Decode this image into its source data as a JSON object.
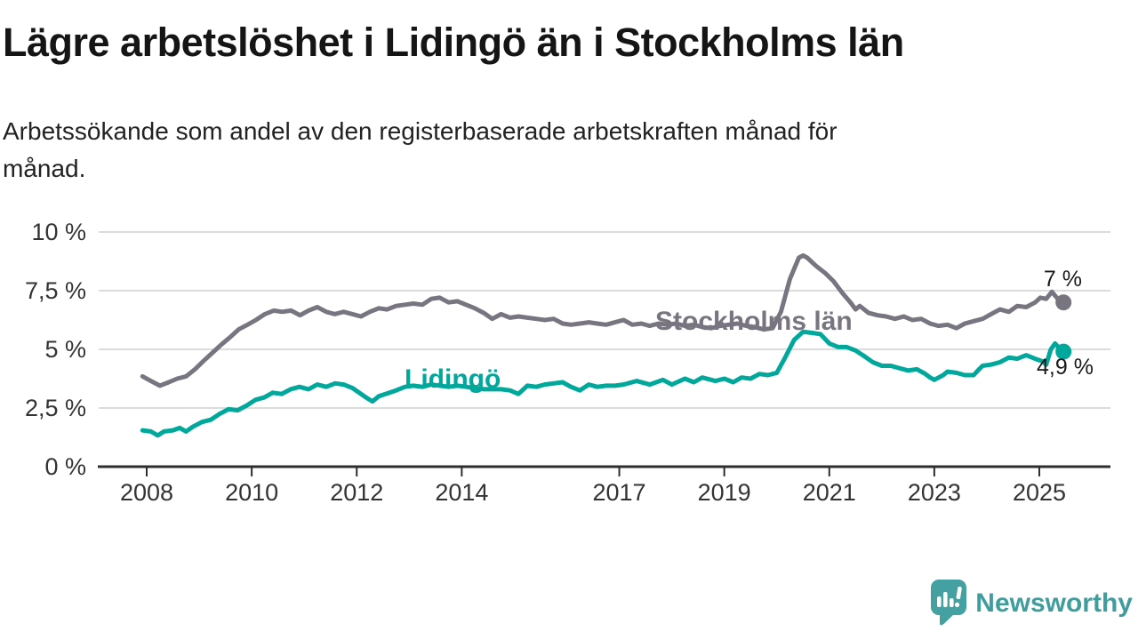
{
  "title": "Lägre arbetslöshet i Lidingö än i Stockholms län",
  "subtitle": "Arbetssökande som andel av den registerbaserade arbetskraften månad för\nmånad.",
  "branding": {
    "logo_text": "Newsworthy"
  },
  "colors": {
    "stockholm_line": "#787580",
    "lidingo_line": "#00a79b",
    "grid": "#dcdcdc",
    "axis": "#2e2e2e",
    "tick_text": "#333333",
    "end_label_text": "#1a1a1a",
    "logo_icon": "#45a1a1",
    "logo_text": "#3f9d9d"
  },
  "chart_data": {
    "type": "line",
    "x_unit": "decimal_year",
    "xlim": [
      2007.1,
      2026.35
    ],
    "ylim": [
      0,
      10
    ],
    "x_ticks": [
      2008,
      2010,
      2012,
      2014,
      2017,
      2019,
      2021,
      2023,
      2025
    ],
    "x_tick_labels": [
      "2008",
      "2010",
      "2012",
      "2014",
      "2017",
      "2019",
      "2021",
      "2023",
      "2025"
    ],
    "y_ticks": [
      0,
      2.5,
      5,
      7.5,
      10
    ],
    "y_tick_labels": [
      "0 %",
      "2,5 %",
      "5 %",
      "7,5 %",
      "10 %"
    ],
    "grid": "horizontal-only",
    "legend": "inline-series-labels",
    "series": [
      {
        "name": "Stockholms län",
        "color": "#787580",
        "end_label": "7 %",
        "latest_value": 7.0,
        "points": [
          [
            2007.92,
            3.85
          ],
          [
            2008.08,
            3.65
          ],
          [
            2008.25,
            3.45
          ],
          [
            2008.42,
            3.6
          ],
          [
            2008.58,
            3.75
          ],
          [
            2008.75,
            3.85
          ],
          [
            2008.92,
            4.15
          ],
          [
            2009.08,
            4.5
          ],
          [
            2009.25,
            4.85
          ],
          [
            2009.42,
            5.2
          ],
          [
            2009.58,
            5.5
          ],
          [
            2009.75,
            5.85
          ],
          [
            2009.92,
            6.05
          ],
          [
            2010.08,
            6.25
          ],
          [
            2010.25,
            6.5
          ],
          [
            2010.42,
            6.65
          ],
          [
            2010.58,
            6.6
          ],
          [
            2010.75,
            6.65
          ],
          [
            2010.92,
            6.45
          ],
          [
            2011.08,
            6.65
          ],
          [
            2011.25,
            6.8
          ],
          [
            2011.42,
            6.6
          ],
          [
            2011.58,
            6.5
          ],
          [
            2011.75,
            6.6
          ],
          [
            2011.92,
            6.5
          ],
          [
            2012.08,
            6.4
          ],
          [
            2012.25,
            6.6
          ],
          [
            2012.42,
            6.75
          ],
          [
            2012.58,
            6.7
          ],
          [
            2012.75,
            6.85
          ],
          [
            2012.92,
            6.9
          ],
          [
            2013.08,
            6.95
          ],
          [
            2013.25,
            6.9
          ],
          [
            2013.42,
            7.15
          ],
          [
            2013.58,
            7.2
          ],
          [
            2013.75,
            7.0
          ],
          [
            2013.92,
            7.05
          ],
          [
            2014.08,
            6.9
          ],
          [
            2014.25,
            6.75
          ],
          [
            2014.42,
            6.55
          ],
          [
            2014.58,
            6.3
          ],
          [
            2014.75,
            6.5
          ],
          [
            2014.92,
            6.35
          ],
          [
            2015.08,
            6.4
          ],
          [
            2015.25,
            6.35
          ],
          [
            2015.42,
            6.3
          ],
          [
            2015.58,
            6.25
          ],
          [
            2015.75,
            6.3
          ],
          [
            2015.92,
            6.1
          ],
          [
            2016.08,
            6.05
          ],
          [
            2016.25,
            6.1
          ],
          [
            2016.42,
            6.15
          ],
          [
            2016.58,
            6.1
          ],
          [
            2016.75,
            6.05
          ],
          [
            2016.92,
            6.15
          ],
          [
            2017.08,
            6.25
          ],
          [
            2017.25,
            6.05
          ],
          [
            2017.42,
            6.1
          ],
          [
            2017.58,
            6.0
          ],
          [
            2017.75,
            6.1
          ],
          [
            2017.92,
            6.05
          ],
          [
            2018.08,
            6.1
          ],
          [
            2018.25,
            6.0
          ],
          [
            2018.42,
            6.05
          ],
          [
            2018.58,
            5.95
          ],
          [
            2018.75,
            5.9
          ],
          [
            2018.92,
            6.0
          ],
          [
            2019.08,
            6.05
          ],
          [
            2019.25,
            6.1
          ],
          [
            2019.42,
            6.0
          ],
          [
            2019.58,
            5.95
          ],
          [
            2019.75,
            5.85
          ],
          [
            2019.92,
            5.9
          ],
          [
            2020.08,
            6.6
          ],
          [
            2020.25,
            8.0
          ],
          [
            2020.42,
            8.9
          ],
          [
            2020.5,
            9.0
          ],
          [
            2020.58,
            8.9
          ],
          [
            2020.75,
            8.55
          ],
          [
            2020.92,
            8.25
          ],
          [
            2021.08,
            7.9
          ],
          [
            2021.25,
            7.4
          ],
          [
            2021.42,
            6.95
          ],
          [
            2021.5,
            6.7
          ],
          [
            2021.58,
            6.85
          ],
          [
            2021.75,
            6.55
          ],
          [
            2021.92,
            6.45
          ],
          [
            2022.08,
            6.4
          ],
          [
            2022.25,
            6.3
          ],
          [
            2022.42,
            6.4
          ],
          [
            2022.58,
            6.25
          ],
          [
            2022.75,
            6.3
          ],
          [
            2022.92,
            6.1
          ],
          [
            2023.08,
            6.0
          ],
          [
            2023.25,
            6.05
          ],
          [
            2023.42,
            5.9
          ],
          [
            2023.58,
            6.1
          ],
          [
            2023.75,
            6.2
          ],
          [
            2023.92,
            6.3
          ],
          [
            2024.08,
            6.5
          ],
          [
            2024.25,
            6.7
          ],
          [
            2024.42,
            6.6
          ],
          [
            2024.58,
            6.85
          ],
          [
            2024.75,
            6.8
          ],
          [
            2024.92,
            7.0
          ],
          [
            2025.02,
            7.2
          ],
          [
            2025.13,
            7.15
          ],
          [
            2025.24,
            7.45
          ],
          [
            2025.35,
            7.15
          ],
          [
            2025.46,
            7.0
          ]
        ]
      },
      {
        "name": "Lidingö",
        "color": "#00a79b",
        "end_label": "4,9 %",
        "latest_value": 4.9,
        "points": [
          [
            2007.92,
            1.55
          ],
          [
            2008.08,
            1.5
          ],
          [
            2008.21,
            1.33
          ],
          [
            2008.33,
            1.5
          ],
          [
            2008.5,
            1.55
          ],
          [
            2008.63,
            1.65
          ],
          [
            2008.75,
            1.5
          ],
          [
            2008.88,
            1.7
          ],
          [
            2009.05,
            1.9
          ],
          [
            2009.22,
            2.0
          ],
          [
            2009.39,
            2.25
          ],
          [
            2009.56,
            2.45
          ],
          [
            2009.73,
            2.4
          ],
          [
            2009.9,
            2.6
          ],
          [
            2010.07,
            2.85
          ],
          [
            2010.24,
            2.95
          ],
          [
            2010.4,
            3.15
          ],
          [
            2010.57,
            3.1
          ],
          [
            2010.74,
            3.3
          ],
          [
            2010.91,
            3.4
          ],
          [
            2011.08,
            3.3
          ],
          [
            2011.25,
            3.5
          ],
          [
            2011.42,
            3.4
          ],
          [
            2011.59,
            3.55
          ],
          [
            2011.75,
            3.5
          ],
          [
            2011.92,
            3.35
          ],
          [
            2012.08,
            3.1
          ],
          [
            2012.21,
            2.9
          ],
          [
            2012.3,
            2.78
          ],
          [
            2012.42,
            3.0
          ],
          [
            2012.58,
            3.12
          ],
          [
            2012.75,
            3.25
          ],
          [
            2012.92,
            3.4
          ],
          [
            2013.08,
            3.45
          ],
          [
            2013.25,
            3.4
          ],
          [
            2013.42,
            3.5
          ],
          [
            2013.58,
            3.45
          ],
          [
            2013.75,
            3.4
          ],
          [
            2013.92,
            3.45
          ],
          [
            2014.08,
            3.4
          ],
          [
            2014.25,
            3.35
          ],
          [
            2014.42,
            3.3
          ],
          [
            2014.58,
            3.3
          ],
          [
            2014.75,
            3.3
          ],
          [
            2014.92,
            3.25
          ],
          [
            2015.08,
            3.1
          ],
          [
            2015.25,
            3.45
          ],
          [
            2015.42,
            3.4
          ],
          [
            2015.58,
            3.5
          ],
          [
            2015.75,
            3.55
          ],
          [
            2015.92,
            3.6
          ],
          [
            2016.08,
            3.4
          ],
          [
            2016.25,
            3.25
          ],
          [
            2016.42,
            3.5
          ],
          [
            2016.58,
            3.4
          ],
          [
            2016.75,
            3.45
          ],
          [
            2016.92,
            3.45
          ],
          [
            2017.08,
            3.5
          ],
          [
            2017.33,
            3.65
          ],
          [
            2017.58,
            3.5
          ],
          [
            2017.83,
            3.7
          ],
          [
            2018.0,
            3.5
          ],
          [
            2018.25,
            3.75
          ],
          [
            2018.42,
            3.6
          ],
          [
            2018.58,
            3.8
          ],
          [
            2018.83,
            3.65
          ],
          [
            2019.0,
            3.75
          ],
          [
            2019.17,
            3.6
          ],
          [
            2019.33,
            3.8
          ],
          [
            2019.5,
            3.75
          ],
          [
            2019.67,
            3.95
          ],
          [
            2019.83,
            3.9
          ],
          [
            2020.0,
            4.0
          ],
          [
            2020.17,
            4.7
          ],
          [
            2020.33,
            5.4
          ],
          [
            2020.5,
            5.75
          ],
          [
            2020.67,
            5.7
          ],
          [
            2020.83,
            5.65
          ],
          [
            2021.0,
            5.25
          ],
          [
            2021.17,
            5.1
          ],
          [
            2021.33,
            5.1
          ],
          [
            2021.5,
            4.95
          ],
          [
            2021.67,
            4.7
          ],
          [
            2021.83,
            4.45
          ],
          [
            2022.0,
            4.3
          ],
          [
            2022.17,
            4.3
          ],
          [
            2022.33,
            4.2
          ],
          [
            2022.5,
            4.1
          ],
          [
            2022.67,
            4.15
          ],
          [
            2022.83,
            3.95
          ],
          [
            2022.92,
            3.8
          ],
          [
            2023.0,
            3.7
          ],
          [
            2023.17,
            3.9
          ],
          [
            2023.25,
            4.05
          ],
          [
            2023.42,
            4.0
          ],
          [
            2023.58,
            3.9
          ],
          [
            2023.75,
            3.9
          ],
          [
            2023.83,
            4.1
          ],
          [
            2023.92,
            4.3
          ],
          [
            2024.08,
            4.35
          ],
          [
            2024.25,
            4.45
          ],
          [
            2024.42,
            4.65
          ],
          [
            2024.58,
            4.6
          ],
          [
            2024.75,
            4.75
          ],
          [
            2024.92,
            4.6
          ],
          [
            2025.05,
            4.5
          ],
          [
            2025.13,
            4.35
          ],
          [
            2025.22,
            5.0
          ],
          [
            2025.3,
            5.25
          ],
          [
            2025.38,
            5.05
          ],
          [
            2025.46,
            4.9
          ]
        ]
      }
    ]
  }
}
